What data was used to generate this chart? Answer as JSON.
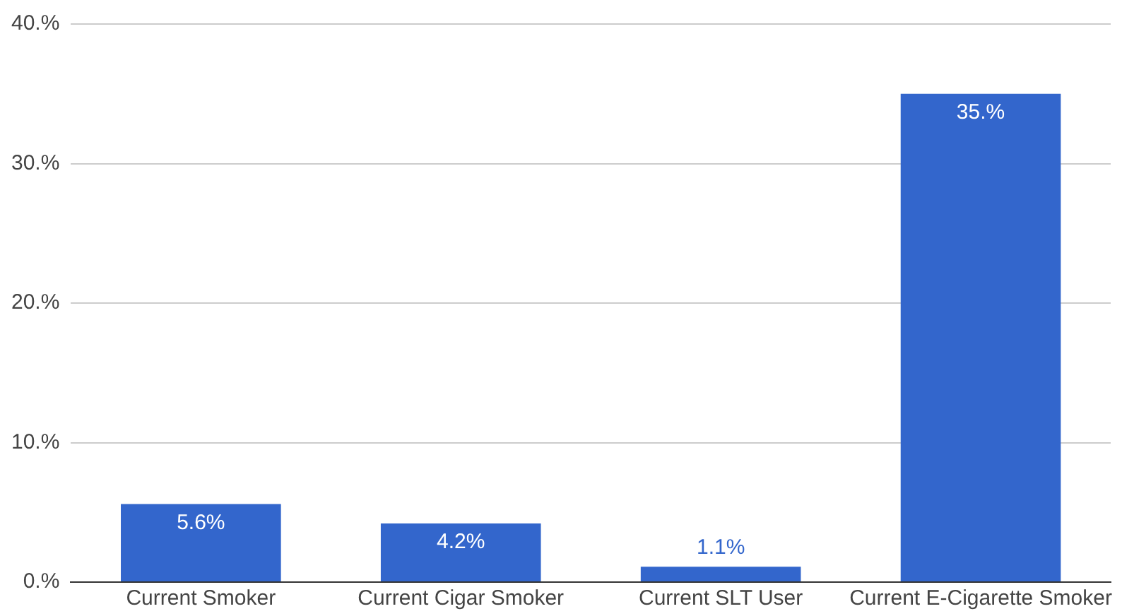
{
  "chart_data": {
    "type": "bar",
    "categories": [
      "Current Smoker",
      "Current Cigar Smoker",
      "Current SLT User",
      "Current E-Cigarette Smoker"
    ],
    "values": [
      5.6,
      4.2,
      1.1,
      35
    ],
    "value_labels": [
      "5.6%",
      "4.2%",
      "1.1%",
      "35.%"
    ],
    "color": "#3366cc",
    "ylim": [
      0,
      40
    ],
    "yticks": [
      {
        "value": 0,
        "label": "0.%"
      },
      {
        "value": 10,
        "label": "10.%"
      },
      {
        "value": 20,
        "label": "20.%"
      },
      {
        "value": 30,
        "label": "30.%"
      },
      {
        "value": 40,
        "label": "40.%"
      }
    ],
    "grid": "y",
    "legend": false
  }
}
